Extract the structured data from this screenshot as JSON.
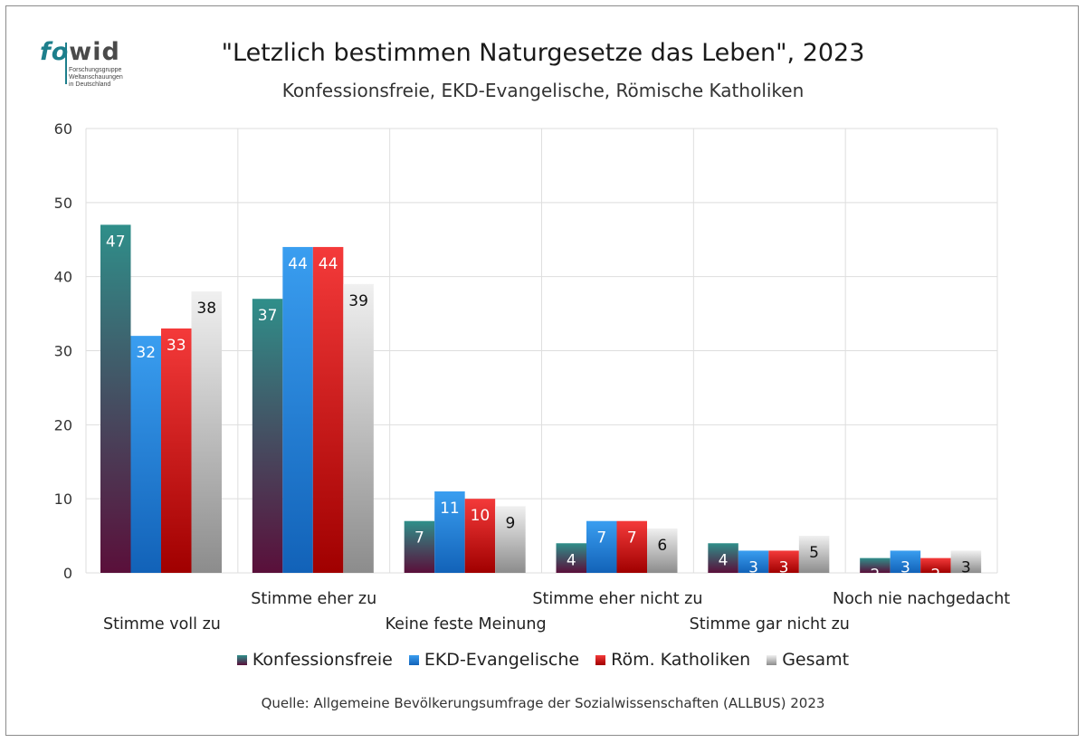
{
  "logo": {
    "word_fo": "fo",
    "word_wid": "wid",
    "subtitle_lines": [
      "Forschungsgruppe",
      "Weltanschauungen",
      "in Deutschland"
    ]
  },
  "header": {
    "title": "\"Letzlich bestimmen Naturgesetze das Leben\", 2023",
    "subtitle": "Konfessionsfreie, EKD-Evangelische, Römische Katholiken"
  },
  "footer": {
    "source": "Quelle: Allgemeine Bevölkerungsumfrage der Sozialwissenschaften (ALLBUS) 2023"
  },
  "chart_data": {
    "type": "bar",
    "title": "\"Letzlich bestimmen Naturgesetze das Leben\", 2023",
    "subtitle": "Konfessionsfreie, EKD-Evangelische, Römische Katholiken",
    "xlabel": "",
    "ylabel": "",
    "ylim": [
      0,
      60
    ],
    "yticks": [
      0,
      10,
      20,
      30,
      40,
      50,
      60
    ],
    "grid": true,
    "legend_position": "bottom",
    "categories": [
      "Stimme voll zu",
      "Stimme eher zu",
      "Keine feste Meinung",
      "Stimme eher nicht zu",
      "Stimme gar nicht zu",
      "Noch nie nachgedacht"
    ],
    "series": [
      {
        "name": "Konfessionsfreie",
        "values": [
          47,
          37,
          7,
          4,
          4,
          2
        ],
        "color_top": "#2f8f8a",
        "color_bottom": "#5a0f3a",
        "label_color": "#ffffff"
      },
      {
        "name": "EKD-Evangelische",
        "values": [
          32,
          44,
          11,
          7,
          3,
          3
        ],
        "color_top": "#3a9ef0",
        "color_bottom": "#1262b8",
        "label_color": "#ffffff"
      },
      {
        "name": "Röm. Katholiken",
        "values": [
          33,
          44,
          10,
          7,
          3,
          2
        ],
        "color_top": "#f43a3a",
        "color_bottom": "#a00000",
        "label_color": "#ffffff"
      },
      {
        "name": "Gesamt",
        "values": [
          38,
          39,
          9,
          6,
          5,
          3
        ],
        "color_top": "#f0f0f0",
        "color_bottom": "#8c8c8c",
        "label_color": "#111111"
      }
    ]
  }
}
